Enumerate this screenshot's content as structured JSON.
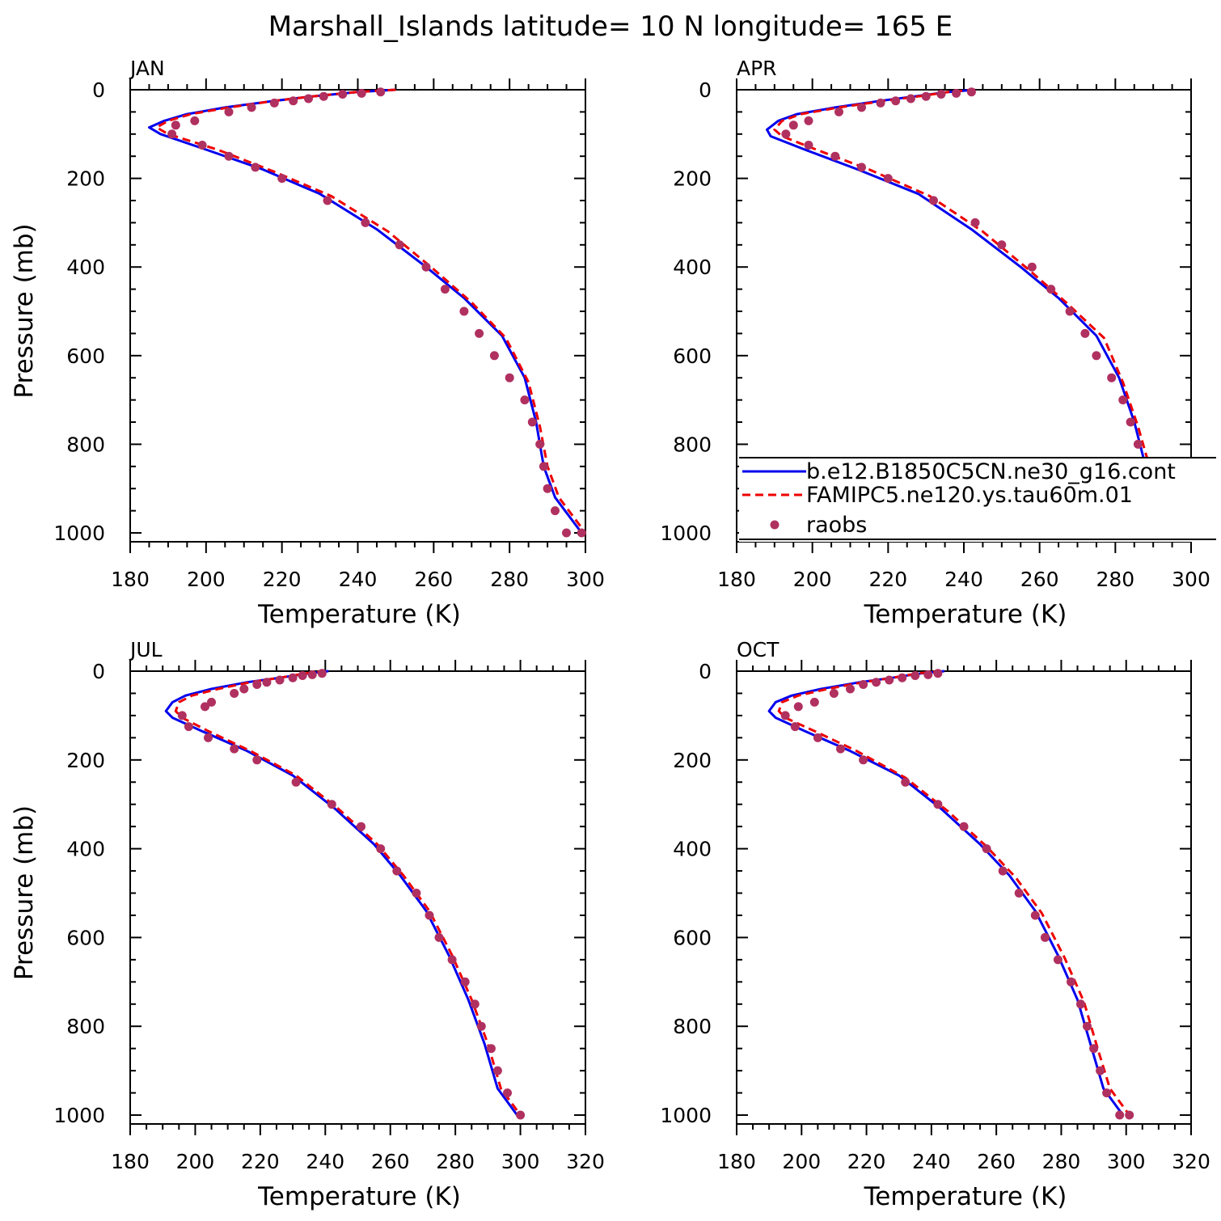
{
  "title": "Marshall_Islands   latitude=  10 N longitude=  165 E",
  "colors": {
    "model1": "#0000ee",
    "model2": "#ee0000",
    "obs": "#b03060",
    "axes": "#000000"
  },
  "legend": {
    "panel": 1,
    "entries": [
      {
        "label": "b.e12.B1850C5CN.ne30_g16.cont",
        "style": "solid-line",
        "color": "#0000ee"
      },
      {
        "label": "FAMIPC5.ne120.ys.tau60m.01",
        "style": "dashed-line",
        "color": "#ee0000"
      },
      {
        "label": "raobs",
        "style": "marker",
        "color": "#b03060"
      }
    ]
  },
  "chart_data": [
    {
      "type": "line",
      "label": "JAN",
      "xlabel": "Temperature (K)",
      "ylabel": "Pressure (mb)",
      "xlim": [
        180,
        300
      ],
      "ylim": [
        1020,
        0
      ],
      "xticks": [
        180,
        200,
        220,
        240,
        260,
        280,
        300
      ],
      "yticks": [
        0,
        200,
        400,
        600,
        800,
        1000
      ],
      "series": [
        {
          "name": "b.e12.B1850C5CN.ne30_g16.cont",
          "x": [
            250,
            240,
            228,
            218,
            205,
            195,
            189,
            185,
            188,
            200,
            215,
            230,
            245,
            258,
            268,
            278,
            284,
            287,
            289,
            292,
            299
          ],
          "y": [
            0,
            5,
            15,
            25,
            40,
            55,
            70,
            85,
            100,
            135,
            180,
            235,
            315,
            400,
            470,
            555,
            650,
            750,
            850,
            920,
            1000
          ]
        },
        {
          "name": "FAMIPC5.ne120.ys.tau60m.01",
          "x": [
            250,
            240,
            228,
            218,
            206,
            196,
            190,
            187,
            190,
            203,
            218,
            233,
            248,
            260,
            270,
            279,
            285,
            288,
            290,
            293,
            300
          ],
          "y": [
            0,
            5,
            15,
            25,
            40,
            55,
            70,
            85,
            100,
            135,
            185,
            240,
            320,
            405,
            480,
            560,
            660,
            760,
            850,
            920,
            1000
          ]
        },
        {
          "name": "raobs",
          "x": [
            246,
            241,
            236,
            231,
            227,
            223,
            218,
            212,
            206,
            197,
            192,
            191,
            199,
            206,
            213,
            220,
            232,
            242,
            251,
            258,
            263,
            268,
            272,
            276,
            280,
            284,
            286,
            288,
            289,
            290,
            292,
            295,
            299
          ],
          "y": [
            5,
            8,
            10,
            15,
            20,
            25,
            30,
            40,
            50,
            70,
            80,
            100,
            125,
            150,
            175,
            200,
            250,
            300,
            350,
            400,
            450,
            500,
            550,
            600,
            650,
            700,
            750,
            800,
            850,
            900,
            950,
            1000,
            1000
          ]
        }
      ]
    },
    {
      "type": "line",
      "label": "APR",
      "xlabel": "Temperature (K)",
      "ylabel": "",
      "xlim": [
        180,
        300
      ],
      "ylim": [
        1020,
        0
      ],
      "xticks": [
        180,
        200,
        220,
        240,
        260,
        280,
        300
      ],
      "yticks": [
        0,
        200,
        400,
        600,
        800,
        1000
      ],
      "series": [
        {
          "name": "b.e12.B1850C5CN.ne30_g16.cont",
          "x": [
            243,
            236,
            227,
            218,
            206,
            196,
            191,
            188,
            189,
            198,
            212,
            228,
            242,
            255,
            265,
            275,
            281,
            285,
            288,
            292,
            299
          ],
          "y": [
            0,
            5,
            15,
            25,
            40,
            55,
            70,
            90,
            105,
            135,
            180,
            235,
            315,
            400,
            470,
            555,
            650,
            750,
            850,
            930,
            1000
          ]
        },
        {
          "name": "FAMIPC5.ne120.ys.tau60m.01",
          "x": [
            243,
            236,
            228,
            219,
            207,
            197,
            192,
            190,
            192,
            201,
            215,
            231,
            245,
            257,
            267,
            277,
            282,
            286,
            289,
            293,
            300
          ],
          "y": [
            0,
            5,
            15,
            25,
            40,
            55,
            70,
            90,
            105,
            135,
            180,
            240,
            320,
            405,
            480,
            560,
            660,
            760,
            850,
            930,
            1000
          ]
        },
        {
          "name": "raobs",
          "x": [
            242,
            238,
            234,
            230,
            226,
            222,
            218,
            213,
            207,
            199,
            195,
            193,
            199,
            206,
            213,
            220,
            232,
            243,
            250,
            258,
            263,
            268,
            272,
            275,
            279,
            282,
            284,
            286,
            288,
            290,
            293,
            297,
            300
          ],
          "y": [
            5,
            8,
            10,
            15,
            20,
            25,
            30,
            40,
            50,
            70,
            80,
            100,
            125,
            150,
            175,
            200,
            250,
            300,
            350,
            400,
            450,
            500,
            550,
            600,
            650,
            700,
            750,
            800,
            850,
            900,
            950,
            1000,
            1000
          ]
        }
      ]
    },
    {
      "type": "line",
      "label": "JUL",
      "xlabel": "Temperature (K)",
      "ylabel": "Pressure (mb)",
      "xlim": [
        180,
        320
      ],
      "ylim": [
        1020,
        0
      ],
      "xticks": [
        180,
        200,
        220,
        240,
        260,
        280,
        300,
        320
      ],
      "yticks": [
        0,
        200,
        400,
        600,
        800,
        1000
      ],
      "series": [
        {
          "name": "b.e12.B1850C5CN.ne30_g16.cont",
          "x": [
            241,
            235,
            226,
            216,
            205,
            197,
            193,
            191,
            193,
            202,
            216,
            230,
            243,
            255,
            263,
            271,
            278,
            284,
            289,
            293,
            299
          ],
          "y": [
            0,
            5,
            15,
            25,
            40,
            55,
            70,
            90,
            105,
            135,
            180,
            235,
            310,
            390,
            460,
            540,
            640,
            740,
            840,
            940,
            1000
          ]
        },
        {
          "name": "FAMIPC5.ne120.ys.tau60m.01",
          "x": [
            240,
            234,
            226,
            217,
            207,
            199,
            195,
            194,
            196,
            204,
            217,
            231,
            244,
            256,
            264,
            272,
            279,
            285,
            290,
            294,
            300
          ],
          "y": [
            0,
            5,
            15,
            25,
            40,
            55,
            70,
            90,
            105,
            135,
            180,
            235,
            310,
            390,
            460,
            540,
            640,
            740,
            840,
            940,
            1000
          ]
        },
        {
          "name": "raobs",
          "x": [
            239,
            236,
            233,
            230,
            226,
            222,
            219,
            215,
            212,
            205,
            203,
            196,
            198,
            204,
            212,
            219,
            231,
            242,
            251,
            257,
            262,
            268,
            272,
            275,
            279,
            283,
            286,
            288,
            291,
            293,
            296,
            300
          ],
          "y": [
            5,
            8,
            10,
            15,
            20,
            25,
            30,
            40,
            50,
            70,
            80,
            100,
            125,
            150,
            175,
            200,
            250,
            300,
            350,
            400,
            450,
            500,
            550,
            600,
            650,
            700,
            750,
            800,
            850,
            900,
            950,
            1000
          ]
        }
      ]
    },
    {
      "type": "line",
      "label": "OCT",
      "xlabel": "Temperature (K)",
      "ylabel": "",
      "xlim": [
        180,
        320
      ],
      "ylim": [
        1020,
        0
      ],
      "xticks": [
        180,
        200,
        220,
        240,
        260,
        280,
        300,
        320
      ],
      "yticks": [
        0,
        200,
        400,
        600,
        800,
        1000
      ],
      "series": [
        {
          "name": "b.e12.B1850C5CN.ne30_g16.cont",
          "x": [
            244,
            237,
            228,
            218,
            206,
            197,
            192,
            190,
            192,
            201,
            215,
            230,
            243,
            255,
            264,
            272,
            279,
            285,
            289,
            293,
            299
          ],
          "y": [
            0,
            5,
            15,
            25,
            40,
            55,
            70,
            90,
            105,
            135,
            180,
            235,
            310,
            390,
            460,
            540,
            640,
            740,
            840,
            940,
            1000
          ]
        },
        {
          "name": "FAMIPC5.ne120.ys.tau60m.01",
          "x": [
            243,
            236,
            228,
            219,
            208,
            199,
            194,
            193,
            195,
            204,
            217,
            232,
            245,
            257,
            266,
            274,
            281,
            287,
            291,
            295,
            301
          ],
          "y": [
            0,
            5,
            15,
            25,
            40,
            55,
            70,
            90,
            105,
            135,
            180,
            240,
            315,
            395,
            465,
            545,
            645,
            745,
            845,
            940,
            1000
          ]
        },
        {
          "name": "raobs",
          "x": [
            242,
            239,
            235,
            231,
            227,
            223,
            219,
            215,
            210,
            204,
            199,
            195,
            198,
            205,
            212,
            219,
            232,
            242,
            250,
            257,
            262,
            267,
            272,
            275,
            279,
            283,
            286,
            288,
            290,
            292,
            294,
            298,
            301
          ],
          "y": [
            5,
            8,
            10,
            15,
            20,
            25,
            30,
            40,
            50,
            70,
            80,
            100,
            125,
            150,
            175,
            200,
            250,
            300,
            350,
            400,
            450,
            500,
            550,
            600,
            650,
            700,
            750,
            800,
            850,
            900,
            950,
            1000,
            1000
          ]
        }
      ]
    }
  ]
}
